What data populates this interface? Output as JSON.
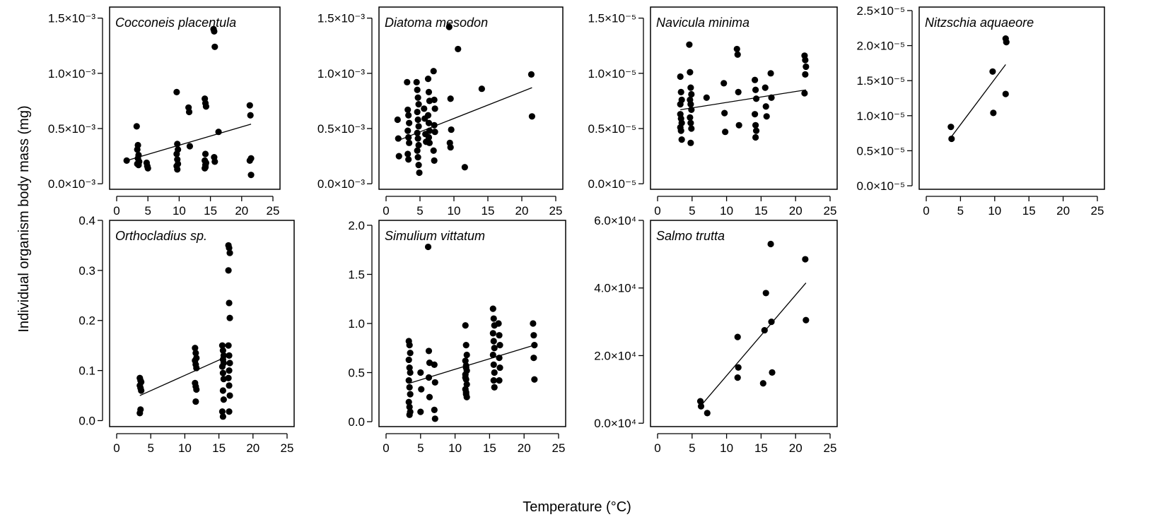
{
  "figure": {
    "ylabel": "Individual organism body mass (mg)",
    "xlabel": "Temperature (°C)"
  },
  "chart_data": [
    {
      "type": "scatter",
      "title": "Cocconeis placentula",
      "xlim": [
        0,
        25
      ],
      "ylim": [
        -5e-05,
        0.0016
      ],
      "xticks": [
        0,
        5,
        10,
        15,
        20,
        25
      ],
      "yticks": [
        0,
        0.0005,
        0.001,
        0.0015
      ],
      "ytick_labels": [
        "0.0×10⁻³",
        "0.5×10⁻³",
        "1.0×10⁻³",
        "1.5×10⁻³"
      ],
      "x": [
        1.6,
        3.2,
        3.4,
        3.3,
        3.5,
        3.4,
        3.6,
        3.3,
        3.5,
        4.8,
        4.9,
        5.0,
        9.6,
        9.7,
        9.8,
        9.6,
        9.7,
        9.8,
        9.6,
        9.7,
        11.5,
        11.6,
        11.7,
        14.1,
        14.2,
        14.3,
        14.2,
        14.1,
        14.3,
        14.2,
        14.2,
        14.1,
        15.5,
        15.6,
        15.7,
        15.6,
        15.7,
        16.3,
        21.3,
        21.4,
        21.5,
        21.3,
        21.5
      ],
      "y": [
        0.00021,
        0.00052,
        0.00035,
        0.00031,
        0.00026,
        0.00023,
        0.0002,
        0.00018,
        0.00017,
        0.00019,
        0.00016,
        0.00014,
        0.00083,
        0.00036,
        0.00031,
        0.00027,
        0.00022,
        0.00018,
        0.00016,
        0.00013,
        0.00069,
        0.00065,
        0.00034,
        0.00077,
        0.00073,
        0.0007,
        0.00027,
        0.00021,
        0.00019,
        0.00017,
        0.00015,
        0.00014,
        0.0014,
        0.00138,
        0.00124,
        0.00024,
        0.0002,
        0.00047,
        0.00071,
        0.00062,
        0.00023,
        0.00021,
        8e-05
      ],
      "fit": {
        "x": [
          1.6,
          21.5
        ],
        "y": [
          0.00021,
          0.00054
        ]
      }
    },
    {
      "type": "scatter",
      "title": "Diatoma mesodon",
      "xlim": [
        0,
        25
      ],
      "ylim": [
        -5e-05,
        0.0016
      ],
      "xticks": [
        0,
        5,
        10,
        15,
        20,
        25
      ],
      "yticks": [
        0,
        0.0005,
        0.001,
        0.0015
      ],
      "ytick_labels": [
        "0.0×10⁻³",
        "0.5×10⁻³",
        "1.0×10⁻³",
        "1.5×10⁻³"
      ],
      "x": [
        1.7,
        1.8,
        1.9,
        3.1,
        3.2,
        3.3,
        3.4,
        3.2,
        3.3,
        3.4,
        3.2,
        3.3,
        4.5,
        4.6,
        4.7,
        4.8,
        4.6,
        4.7,
        4.8,
        4.6,
        4.7,
        4.8,
        4.6,
        4.7,
        4.8,
        4.9,
        5.6,
        5.7,
        5.8,
        5.9,
        6.2,
        6.3,
        6.4,
        6.2,
        6.3,
        6.4,
        6.3,
        6.4,
        7.0,
        7.1,
        7.2,
        7.1,
        7.2,
        7.0,
        7.1,
        9.3,
        9.5,
        9.6,
        9.4,
        9.5,
        10.6,
        11.6,
        14.1,
        21.4,
        21.5
      ],
      "y": [
        0.00058,
        0.00041,
        0.00025,
        0.00092,
        0.00067,
        0.00062,
        0.00055,
        0.00048,
        0.00042,
        0.00037,
        0.00027,
        0.00022,
        0.00092,
        0.00085,
        0.00078,
        0.00072,
        0.00065,
        0.00058,
        0.00052,
        0.00046,
        0.00041,
        0.00035,
        0.0003,
        0.00024,
        0.00017,
        0.0001,
        0.00068,
        0.00059,
        0.00045,
        0.00038,
        0.00095,
        0.00083,
        0.00075,
        0.00062,
        0.00055,
        0.00048,
        0.00042,
        0.00037,
        0.00102,
        0.00076,
        0.00068,
        0.00053,
        0.00047,
        0.0003,
        0.00021,
        0.00142,
        0.00077,
        0.00049,
        0.00037,
        0.00033,
        0.00122,
        0.00015,
        0.00086,
        0.00099,
        0.00061
      ],
      "fit": {
        "x": [
          1.7,
          21.5
        ],
        "y": [
          0.00039,
          0.00087
        ]
      }
    },
    {
      "type": "scatter",
      "title": "Navicula minima",
      "xlim": [
        0,
        25
      ],
      "ylim": [
        -5e-07,
        1.6e-05
      ],
      "xticks": [
        0,
        5,
        10,
        15,
        20,
        25
      ],
      "yticks": [
        0,
        5e-06,
        1e-05,
        1.5e-05
      ],
      "ytick_labels": [
        "0.0×10⁻⁵",
        "0.5×10⁻⁵",
        "1.0×10⁻⁵",
        "1.5×10⁻⁵"
      ],
      "x": [
        3.3,
        3.4,
        3.5,
        3.3,
        3.4,
        3.5,
        3.3,
        3.4,
        3.5,
        3.3,
        4.6,
        4.7,
        4.8,
        4.9,
        4.7,
        4.8,
        4.9,
        4.7,
        4.8,
        4.9,
        4.8,
        7.1,
        9.6,
        9.7,
        9.8,
        11.5,
        11.6,
        11.7,
        11.8,
        14.1,
        14.2,
        14.3,
        14.1,
        14.2,
        14.3,
        14.2,
        15.6,
        15.7,
        15.8,
        16.4,
        16.5,
        21.3,
        21.4,
        21.5,
        21.4,
        21.3
      ],
      "y": [
        9.7e-06,
        8.3e-06,
        7.6e-06,
        7.2e-06,
        5.9e-06,
        5.5e-06,
        5.1e-06,
        4.8e-06,
        4e-06,
        6.3e-06,
        1.26e-05,
        1.01e-05,
        8.7e-06,
        8.1e-06,
        7.6e-06,
        7.2e-06,
        6.7e-06,
        6e-06,
        5.5e-06,
        5e-06,
        3.7e-06,
        7.8e-06,
        9.1e-06,
        6.4e-06,
        4.7e-06,
        1.22e-05,
        1.17e-05,
        8.3e-06,
        5.3e-06,
        9.4e-06,
        8.5e-06,
        7.7e-06,
        6.3e-06,
        5.3e-06,
        4.8e-06,
        4.2e-06,
        8.7e-06,
        7e-06,
        6.1e-06,
        1e-05,
        7.8e-06,
        1.16e-05,
        1.12e-05,
        1.06e-05,
        9.9e-06,
        8.2e-06
      ],
      "fit": {
        "x": [
          3.3,
          21.5
        ],
        "y": [
          6.7e-06,
          8.5e-06
        ]
      }
    },
    {
      "type": "scatter",
      "title": "Nitzschia aquaeore",
      "xlim": [
        0,
        25
      ],
      "ylim": [
        -5e-07,
        2.55e-05
      ],
      "xticks": [
        0,
        5,
        10,
        15,
        20,
        25
      ],
      "yticks": [
        0,
        5e-06,
        1e-05,
        1.5e-05,
        2e-05,
        2.5e-05
      ],
      "ytick_labels": [
        "0.0×10⁻⁵",
        "0.5×10⁻⁵",
        "1.0×10⁻⁵",
        "1.5×10⁻⁵",
        "2.0×10⁻⁵",
        "2.5×10⁻⁵"
      ],
      "x": [
        3.6,
        3.7,
        9.7,
        9.8,
        11.6,
        11.7,
        11.6
      ],
      "y": [
        8.4e-06,
        6.7e-06,
        1.63e-05,
        1.04e-05,
        2.1e-05,
        2.05e-05,
        1.31e-05
      ],
      "fit": {
        "x": [
          3.6,
          11.6
        ],
        "y": [
          6.9e-06,
          1.73e-05
        ]
      }
    },
    {
      "type": "scatter",
      "title": "Orthocladius sp.",
      "xlim": [
        0,
        25
      ],
      "ylim": [
        -0.012,
        0.4
      ],
      "xticks": [
        0,
        5,
        10,
        15,
        20,
        25
      ],
      "yticks": [
        0,
        0.1,
        0.2,
        0.3,
        0.4
      ],
      "ytick_labels": [
        "0.0",
        "0.1",
        "0.2",
        "0.3",
        "0.4"
      ],
      "x": [
        3.4,
        3.5,
        3.6,
        3.4,
        3.5,
        3.6,
        3.5,
        3.4,
        11.5,
        11.6,
        11.7,
        11.5,
        11.6,
        11.7,
        11.5,
        11.6,
        11.7,
        11.6,
        15.5,
        15.6,
        15.7,
        15.6,
        15.7,
        15.5,
        15.6,
        15.7,
        15.6,
        15.7,
        15.5,
        15.6,
        16.4,
        16.5,
        16.6,
        16.4,
        16.5,
        16.6,
        16.4,
        16.5,
        16.6,
        16.5,
        16.4,
        16.5,
        16.6,
        16.5
      ],
      "y": [
        0.085,
        0.08,
        0.077,
        0.07,
        0.065,
        0.06,
        0.022,
        0.015,
        0.145,
        0.135,
        0.125,
        0.12,
        0.112,
        0.105,
        0.075,
        0.068,
        0.062,
        0.038,
        0.15,
        0.14,
        0.13,
        0.122,
        0.115,
        0.108,
        0.095,
        0.083,
        0.06,
        0.042,
        0.018,
        0.008,
        0.35,
        0.345,
        0.335,
        0.3,
        0.235,
        0.205,
        0.15,
        0.13,
        0.115,
        0.1,
        0.085,
        0.07,
        0.05,
        0.018
      ],
      "fit": {
        "x": [
          3.4,
          16.5
        ],
        "y": [
          0.05,
          0.13
        ]
      }
    },
    {
      "type": "scatter",
      "title": "Simulium vittatum",
      "xlim": [
        0,
        25
      ],
      "ylim": [
        -0.05,
        2.05
      ],
      "xticks": [
        0,
        5,
        10,
        15,
        20,
        25
      ],
      "yticks": [
        0,
        0.5,
        1,
        1.5,
        2
      ],
      "ytick_labels": [
        "0.0",
        "0.5",
        "1.0",
        "1.5",
        "2.0"
      ],
      "x": [
        3.3,
        3.4,
        3.5,
        3.3,
        3.4,
        3.5,
        3.3,
        3.4,
        3.5,
        3.3,
        3.4,
        3.5,
        3.4,
        5.0,
        5.1,
        5.0,
        6.1,
        6.2,
        6.3,
        6.2,
        6.3,
        7.0,
        7.1,
        7.0,
        7.1,
        11.5,
        11.6,
        11.7,
        11.5,
        11.6,
        11.7,
        11.5,
        11.6,
        11.7,
        11.5,
        11.6,
        11.7,
        11.6,
        11.5,
        11.6,
        15.5,
        15.6,
        15.7,
        15.5,
        15.6,
        15.7,
        15.5,
        15.6,
        15.7,
        15.6,
        15.7,
        16.3,
        16.4,
        16.5,
        16.4,
        16.5,
        16.4,
        21.3,
        21.4,
        21.5,
        21.4,
        21.5
      ],
      "y": [
        0.82,
        0.78,
        0.7,
        0.63,
        0.55,
        0.5,
        0.42,
        0.35,
        0.28,
        0.2,
        0.15,
        0.1,
        0.07,
        0.5,
        0.33,
        0.1,
        1.78,
        0.72,
        0.6,
        0.45,
        0.25,
        0.58,
        0.4,
        0.12,
        0.03,
        0.98,
        0.78,
        0.68,
        0.62,
        0.57,
        0.52,
        0.48,
        0.43,
        0.38,
        0.33,
        0.28,
        0.25,
        0.3,
        0.45,
        0.55,
        1.15,
        1.05,
        0.98,
        0.9,
        0.82,
        0.75,
        0.68,
        0.58,
        0.5,
        0.42,
        0.35,
        1.0,
        0.88,
        0.78,
        0.65,
        0.55,
        0.42,
        1.0,
        0.88,
        0.78,
        0.65,
        0.43
      ],
      "fit": {
        "x": [
          3.3,
          21.5
        ],
        "y": [
          0.39,
          0.78
        ]
      }
    },
    {
      "type": "scatter",
      "title": "Salmo trutta",
      "xlim": [
        0,
        25
      ],
      "ylim": [
        -1000,
        60000
      ],
      "xticks": [
        0,
        5,
        10,
        15,
        20,
        25
      ],
      "yticks": [
        0,
        20000,
        40000,
        60000
      ],
      "ytick_labels": [
        "0.0×10⁴",
        "2.0×10⁴",
        "4.0×10⁴",
        "6.0×10⁴"
      ],
      "x": [
        6.2,
        6.3,
        7.2,
        11.6,
        11.7,
        11.6,
        15.3,
        15.5,
        15.7,
        16.4,
        16.5,
        16.6,
        21.4,
        21.5
      ],
      "y": [
        6500,
        5000,
        3000,
        25500,
        16500,
        13500,
        11800,
        27500,
        38500,
        53000,
        30000,
        15000,
        48500,
        30500
      ],
      "fit": {
        "x": [
          6.2,
          21.5
        ],
        "y": [
          5000,
          41500
        ]
      }
    }
  ]
}
